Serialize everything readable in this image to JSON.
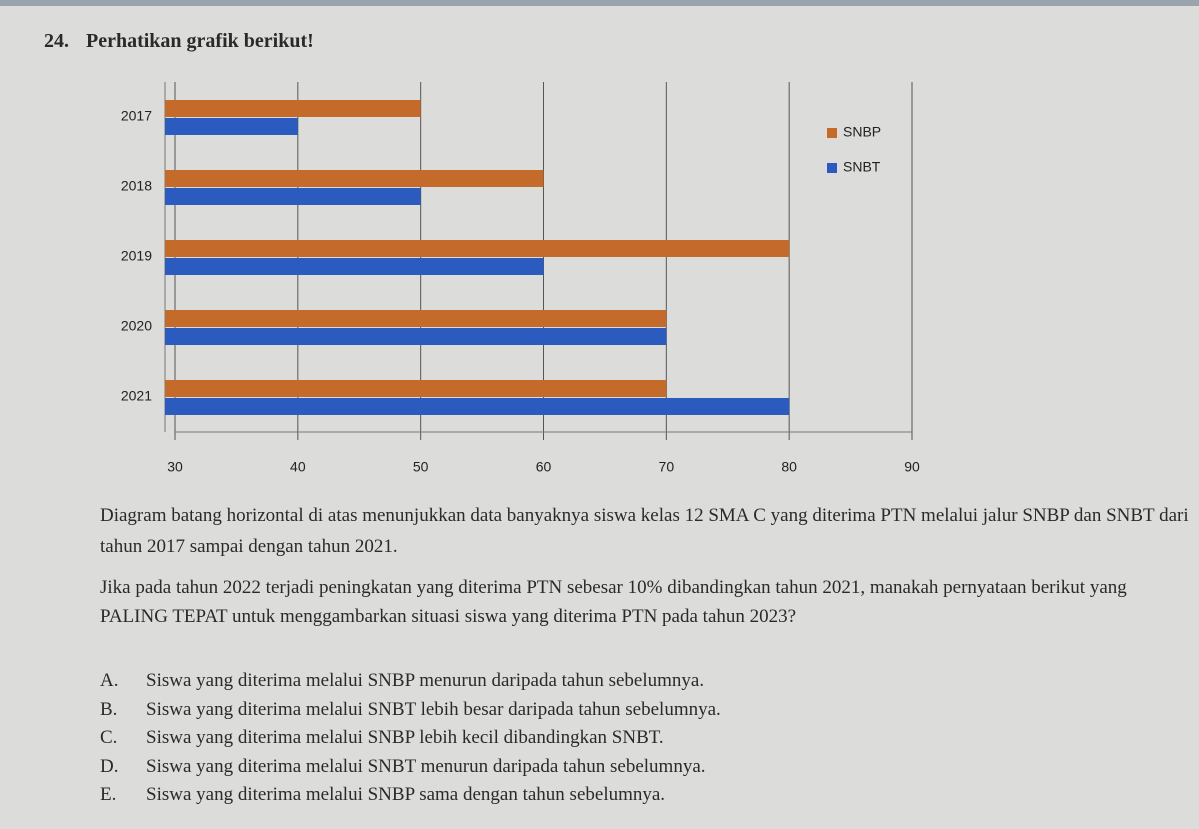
{
  "question": {
    "number": "24.",
    "instruction": "Perhatikan grafik berikut!",
    "paragraphs": [
      "Diagram batang horizontal di atas menunjukkan data banyaknya siswa kelas 12 SMA C yang diterima PTN melalui jalur SNBP dan SNBT dari tahun 2017 sampai dengan tahun 2021.",
      "Jika pada tahun 2022 terjadi peningkatan yang diterima PTN sebesar 10% dibandingkan tahun 2021, manakah pernyataan berikut yang PALING TEPAT untuk menggambarkan situasi siswa yang diterima PTN pada tahun 2023?"
    ],
    "options": [
      {
        "letter": "A.",
        "text": "Siswa yang diterima melalui SNBP menurun daripada tahun sebelumnya."
      },
      {
        "letter": "B.",
        "text": "Siswa yang diterima melalui SNBT lebih besar daripada tahun sebelumnya."
      },
      {
        "letter": "C.",
        "text": "Siswa yang diterima melalui SNBP lebih kecil dibandingkan SNBT."
      },
      {
        "letter": "D.",
        "text": "Siswa yang diterima melalui SNBT menurun daripada tahun sebelumnya."
      },
      {
        "letter": "E.",
        "text": "Siswa yang diterima melalui SNBP sama dengan tahun sebelumnya."
      }
    ]
  },
  "chart_data": {
    "type": "bar",
    "orientation": "horizontal",
    "categories": [
      "2017",
      "2018",
      "2019",
      "2020",
      "2021"
    ],
    "series": [
      {
        "name": "SNBP",
        "color": "#c46a2a",
        "values": [
          50,
          60,
          80,
          70,
          70
        ]
      },
      {
        "name": "SNBT",
        "color": "#2b5bbf",
        "values": [
          40,
          50,
          60,
          70,
          80
        ]
      }
    ],
    "xlim": [
      30,
      90
    ],
    "xticks": [
      30,
      40,
      50,
      60,
      70,
      80,
      90
    ],
    "grid": true,
    "legend": "right"
  }
}
